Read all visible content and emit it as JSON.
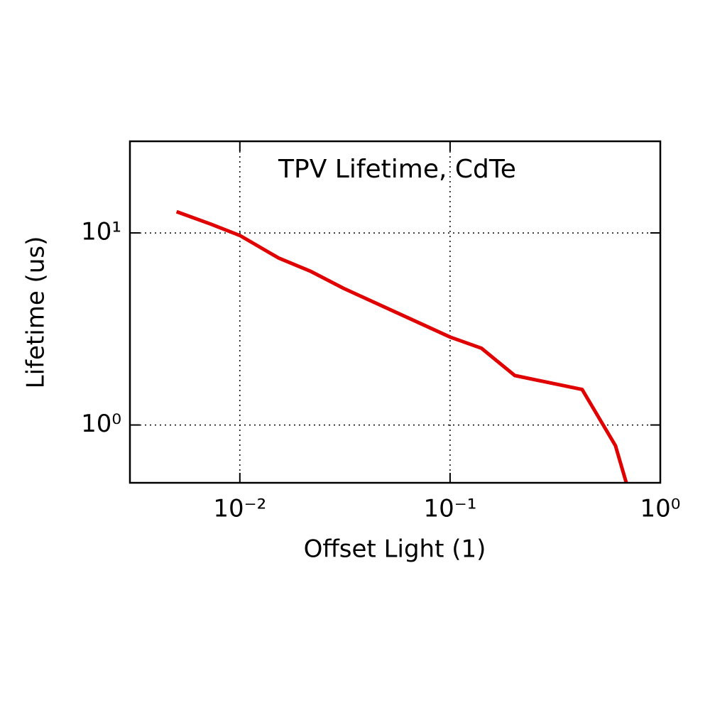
{
  "chart_data": {
    "type": "line",
    "title": "TPV Lifetime, CdTe",
    "x_label": "Offset Light (1)",
    "y_label": "Lifetime (us)",
    "xscale": "log",
    "yscale": "log",
    "xlim": [
      0.003,
      1
    ],
    "ylim": [
      0.5,
      30
    ],
    "xticks": [
      {
        "value": 0.01,
        "label": "10⁻²"
      },
      {
        "value": 0.1,
        "label": "10⁻¹"
      },
      {
        "value": 1,
        "label": "10⁰"
      }
    ],
    "yticks": [
      {
        "value": 1,
        "label": "10⁰"
      },
      {
        "value": 10,
        "label": "10¹"
      }
    ],
    "grid": true,
    "series": [
      {
        "color": "#e00000",
        "x": [
          0.005,
          0.0073,
          0.01,
          0.0153,
          0.0218,
          0.0311,
          0.1,
          0.141,
          0.203,
          0.425,
          0.612,
          0.689
        ],
        "values": [
          12.9,
          11.1,
          9.7,
          7.4,
          6.3,
          5.15,
          2.87,
          2.51,
          1.81,
          1.53,
          0.78,
          0.5
        ]
      }
    ]
  }
}
